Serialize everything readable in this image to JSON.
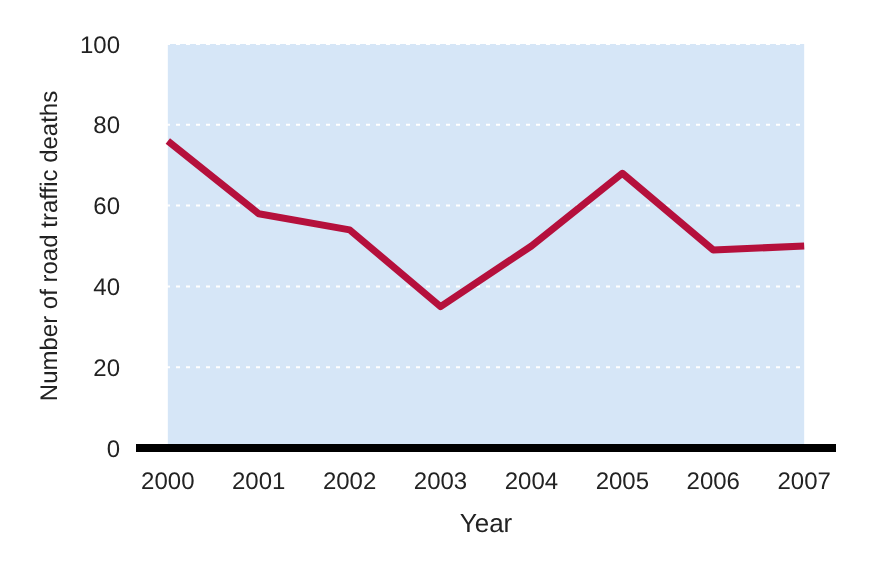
{
  "chart_data": {
    "type": "line",
    "xlabel": "Year",
    "ylabel": "Number of road traffic deaths",
    "categories": [
      "2000",
      "2001",
      "2002",
      "2003",
      "2004",
      "2005",
      "2006",
      "2007"
    ],
    "series": [
      {
        "color": "#b5103c",
        "values": [
          76,
          58,
          54,
          35,
          50,
          68,
          49,
          50
        ]
      }
    ],
    "ylim": [
      0,
      100
    ],
    "yticks": [
      0,
      20,
      40,
      60,
      80,
      100
    ],
    "grid": "y",
    "marker": "none",
    "line_style": "solid"
  }
}
